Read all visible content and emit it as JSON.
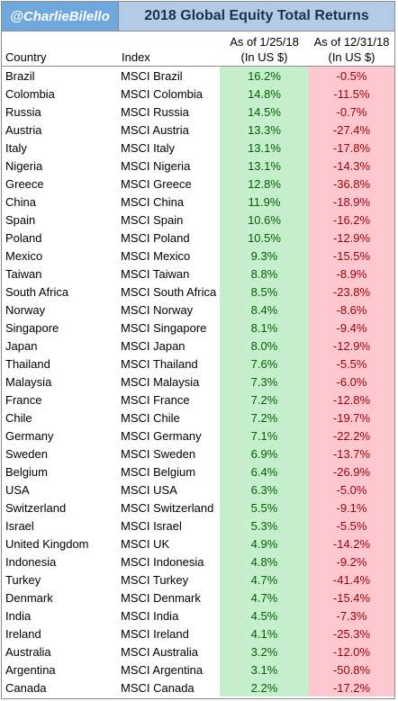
{
  "banner": {
    "handle": "@CharlieBilello",
    "title": "2018 Global Equity Total Returns"
  },
  "headers": {
    "country": "Country",
    "index": "Index",
    "jan_line1": "As of 1/25/18",
    "jan_line2": "(In US $)",
    "dec_line1": "As of 12/31/18",
    "dec_line2": "(In US $)"
  },
  "colors": {
    "positive_fill": "#c6efce",
    "positive_text": "#006100",
    "negative_fill": "#ffc7ce",
    "negative_text": "#9c0006",
    "handle_fill": "#6fa8dc",
    "title_fill": "#b4cbe8"
  },
  "rows": [
    {
      "country": "Brazil",
      "index": "MSCI Brazil",
      "jan": "16.2%",
      "dec": "-0.5%"
    },
    {
      "country": "Colombia",
      "index": "MSCI Colombia",
      "jan": "14.8%",
      "dec": "-11.5%"
    },
    {
      "country": "Russia",
      "index": "MSCI Russia",
      "jan": "14.5%",
      "dec": "-0.7%"
    },
    {
      "country": "Austria",
      "index": "MSCI Austria",
      "jan": "13.3%",
      "dec": "-27.4%"
    },
    {
      "country": "Italy",
      "index": "MSCI Italy",
      "jan": "13.1%",
      "dec": "-17.8%"
    },
    {
      "country": "Nigeria",
      "index": "MSCI Nigeria",
      "jan": "13.1%",
      "dec": "-14.3%"
    },
    {
      "country": "Greece",
      "index": "MSCI Greece",
      "jan": "12.8%",
      "dec": "-36.8%"
    },
    {
      "country": "China",
      "index": "MSCI China",
      "jan": "11.9%",
      "dec": "-18.9%"
    },
    {
      "country": "Spain",
      "index": "MSCI Spain",
      "jan": "10.6%",
      "dec": "-16.2%"
    },
    {
      "country": "Poland",
      "index": "MSCI Poland",
      "jan": "10.5%",
      "dec": "-12.9%"
    },
    {
      "country": "Mexico",
      "index": "MSCI Mexico",
      "jan": "9.3%",
      "dec": "-15.5%"
    },
    {
      "country": "Taiwan",
      "index": "MSCI Taiwan",
      "jan": "8.8%",
      "dec": "-8.9%"
    },
    {
      "country": "South Africa",
      "index": "MSCI South Africa",
      "jan": "8.5%",
      "dec": "-23.8%"
    },
    {
      "country": "Norway",
      "index": "MSCI Norway",
      "jan": "8.4%",
      "dec": "-8.6%"
    },
    {
      "country": "Singapore",
      "index": "MSCI Singapore",
      "jan": "8.1%",
      "dec": "-9.4%"
    },
    {
      "country": "Japan",
      "index": "MSCI Japan",
      "jan": "8.0%",
      "dec": "-12.9%"
    },
    {
      "country": "Thailand",
      "index": "MSCI Thailand",
      "jan": "7.6%",
      "dec": "-5.5%"
    },
    {
      "country": "Malaysia",
      "index": "MSCI Malaysia",
      "jan": "7.3%",
      "dec": "-6.0%"
    },
    {
      "country": "France",
      "index": "MSCI France",
      "jan": "7.2%",
      "dec": "-12.8%"
    },
    {
      "country": "Chile",
      "index": "MSCI Chile",
      "jan": "7.2%",
      "dec": "-19.7%"
    },
    {
      "country": "Germany",
      "index": "MSCI Germany",
      "jan": "7.1%",
      "dec": "-22.2%"
    },
    {
      "country": "Sweden",
      "index": "MSCI Sweden",
      "jan": "6.9%",
      "dec": "-13.7%"
    },
    {
      "country": "Belgium",
      "index": "MSCI Belgium",
      "jan": "6.4%",
      "dec": "-26.9%"
    },
    {
      "country": "USA",
      "index": "MSCI USA",
      "jan": "6.3%",
      "dec": "-5.0%"
    },
    {
      "country": "Switzerland",
      "index": "MSCI Switzerland",
      "jan": "5.5%",
      "dec": "-9.1%"
    },
    {
      "country": "Israel",
      "index": "MSCI Israel",
      "jan": "5.3%",
      "dec": "-5.5%"
    },
    {
      "country": "United Kingdom",
      "index": "MSCI UK",
      "jan": "4.9%",
      "dec": "-14.2%"
    },
    {
      "country": "Indonesia",
      "index": "MSCI Indonesia",
      "jan": "4.8%",
      "dec": "-9.2%"
    },
    {
      "country": "Turkey",
      "index": "MSCI Turkey",
      "jan": "4.7%",
      "dec": "-41.4%"
    },
    {
      "country": "Denmark",
      "index": "MSCI Denmark",
      "jan": "4.7%",
      "dec": "-15.4%"
    },
    {
      "country": "India",
      "index": "MSCI India",
      "jan": "4.5%",
      "dec": "-7.3%"
    },
    {
      "country": "Ireland",
      "index": "MSCI Ireland",
      "jan": "4.1%",
      "dec": "-25.3%"
    },
    {
      "country": "Australia",
      "index": "MSCI Australia",
      "jan": "3.2%",
      "dec": "-12.0%"
    },
    {
      "country": "Argentina",
      "index": "MSCI Argentina",
      "jan": "3.1%",
      "dec": "-50.8%"
    },
    {
      "country": "Canada",
      "index": "MSCI Canada",
      "jan": "2.2%",
      "dec": "-17.2%"
    }
  ]
}
